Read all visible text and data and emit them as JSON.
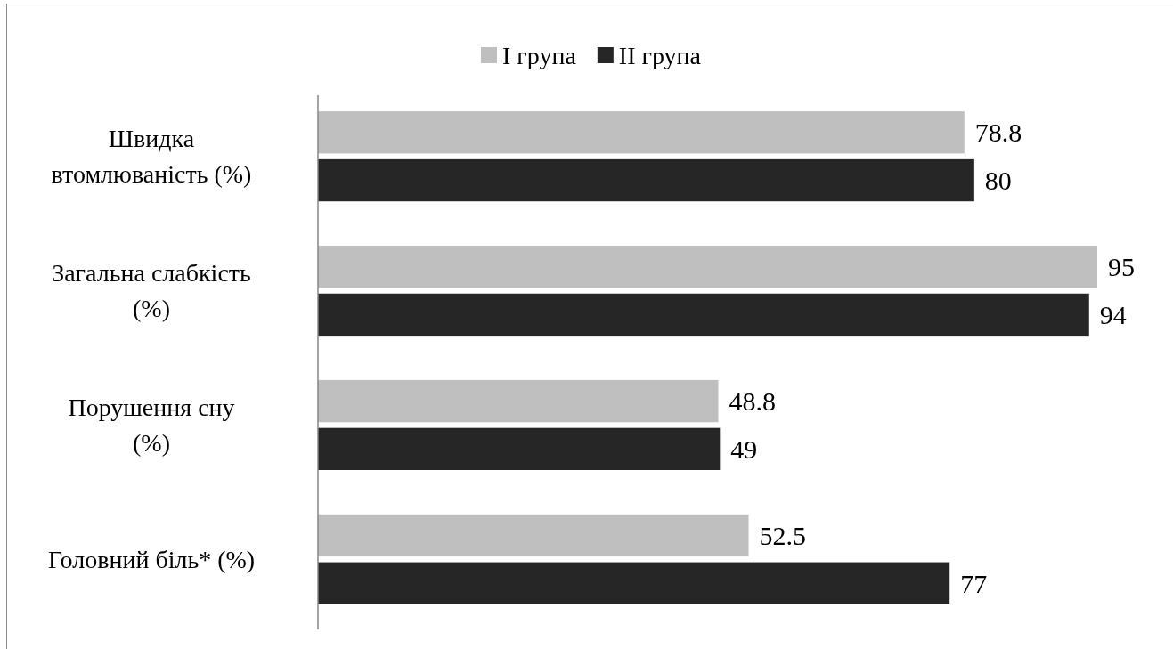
{
  "chart_data": {
    "type": "bar",
    "orientation": "horizontal",
    "categories": [
      "Швидка\nвтомлюваність (%)",
      "Загальна слабкість\n(%)",
      "Порушення сну\n(%)",
      "Головний біль* (%)"
    ],
    "series": [
      {
        "name": "I група",
        "color": "#bfbfbf",
        "values": [
          78.8,
          95,
          48.8,
          52.5
        ]
      },
      {
        "name": "II група",
        "color": "#262626",
        "values": [
          80,
          94,
          49,
          77
        ]
      }
    ],
    "data_labels": true,
    "legend": "top"
  }
}
